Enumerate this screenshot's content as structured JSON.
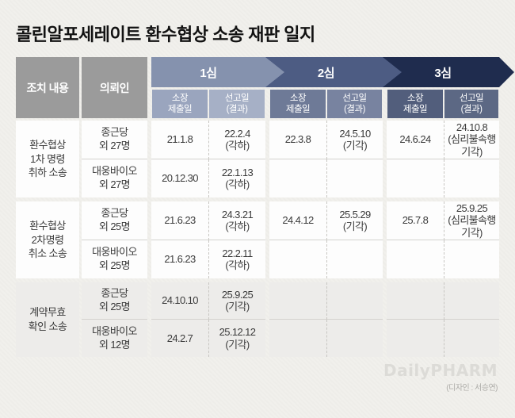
{
  "title": "콜린알포세레이트 환수협상 소송 재판 일지",
  "colors": {
    "header_gray": "#9b9b9b",
    "stage1": "#8592ae",
    "stage2": "#4d5c83",
    "stage3": "#1f2c4e",
    "sub1a": "#9aa5be",
    "sub1b": "#a6b0c6",
    "sub2a": "#6e7a97",
    "sub2b": "#7883a0",
    "sub3a": "#525e7c",
    "sub3b": "#5c6884",
    "cell_bg": "#fdfdfd",
    "cell_bg_gray": "#edecea"
  },
  "header": {
    "col_action": "조치 내용",
    "col_client": "의뢰인",
    "stages": [
      {
        "label": "1심"
      },
      {
        "label": "2심"
      },
      {
        "label": "3심"
      }
    ],
    "sub_filed": "소장\n제출일",
    "sub_ruling": "선고일\n(결과)"
  },
  "groups": [
    {
      "action": "환수협상\n1차 명령\n취하 소송",
      "rows": [
        {
          "client": "종근당\n외 27명",
          "s1_filed": "21.1.8",
          "s1_ruling": "22.2.4\n(각하)",
          "s2_filed": "22.3.8",
          "s2_ruling": "24.5.10\n(기각)",
          "s3_filed": "24.6.24",
          "s3_ruling": "24.10.8\n(심리불속행\n기각)"
        },
        {
          "client": "대웅바이오\n외 27명",
          "s1_filed": "20.12.30",
          "s1_ruling": "22.1.13\n(각하)",
          "s2_filed": "",
          "s2_ruling": "",
          "s3_filed": "",
          "s3_ruling": ""
        }
      ]
    },
    {
      "action": "환수협상\n2차명령\n취소 소송",
      "rows": [
        {
          "client": "종근당\n외 25명",
          "s1_filed": "21.6.23",
          "s1_ruling": "24.3.21\n(각하)",
          "s2_filed": "24.4.12",
          "s2_ruling": "25.5.29\n(기각)",
          "s3_filed": "25.7.8",
          "s3_ruling": "25.9.25\n(심리불속행\n기각)"
        },
        {
          "client": "대웅바이오\n외 25명",
          "s1_filed": "21.6.23",
          "s1_ruling": "22.2.11\n(각하)",
          "s2_filed": "",
          "s2_ruling": "",
          "s3_filed": "",
          "s3_ruling": ""
        }
      ]
    },
    {
      "action": "계약무효\n확인 소송",
      "rows": [
        {
          "client": "종근당\n외 25명",
          "s1_filed": "24.10.10",
          "s1_ruling": "25.9.25\n(기각)",
          "s2_filed": "",
          "s2_ruling": "",
          "s3_filed": "",
          "s3_ruling": ""
        },
        {
          "client": "대웅바이오\n외 12명",
          "s1_filed": "24.2.7",
          "s1_ruling": "25.12.12\n(기각)",
          "s2_filed": "",
          "s2_ruling": "",
          "s3_filed": "",
          "s3_ruling": ""
        }
      ]
    }
  ],
  "footer": {
    "logo_text": "DailyPHARM",
    "credit": "(디자인 : 서승연)"
  },
  "chart_data": {
    "type": "table",
    "title": "콜린알포세레이트 환수협상 소송 재판 일지",
    "columns": [
      "조치 내용",
      "의뢰인",
      "1심 소장 제출일",
      "1심 선고일(결과)",
      "2심 소장 제출일",
      "2심 선고일(결과)",
      "3심 소장 제출일",
      "3심 선고일(결과)"
    ],
    "rows": [
      [
        "환수협상 1차 명령 취하 소송",
        "종근당 외 27명",
        "21.1.8",
        "22.2.4 (각하)",
        "22.3.8",
        "24.5.10 (기각)",
        "24.6.24",
        "24.10.8 (심리불속행 기각)"
      ],
      [
        "환수협상 1차 명령 취하 소송",
        "대웅바이오 외 27명",
        "20.12.30",
        "22.1.13 (각하)",
        "",
        "",
        "",
        ""
      ],
      [
        "환수협상 2차명령 취소 소송",
        "종근당 외 25명",
        "21.6.23",
        "24.3.21 (각하)",
        "24.4.12",
        "25.5.29 (기각)",
        "25.7.8",
        "25.9.25 (심리불속행 기각)"
      ],
      [
        "환수협상 2차명령 취소 소송",
        "대웅바이오 외 25명",
        "21.6.23",
        "22.2.11 (각하)",
        "",
        "",
        "",
        ""
      ],
      [
        "계약무효 확인 소송",
        "종근당 외 25명",
        "24.10.10",
        "25.9.25 (기각)",
        "",
        "",
        "",
        ""
      ],
      [
        "계약무효 확인 소송",
        "대웅바이오 외 12명",
        "24.2.7",
        "25.12.12 (기각)",
        "",
        "",
        "",
        ""
      ]
    ]
  }
}
